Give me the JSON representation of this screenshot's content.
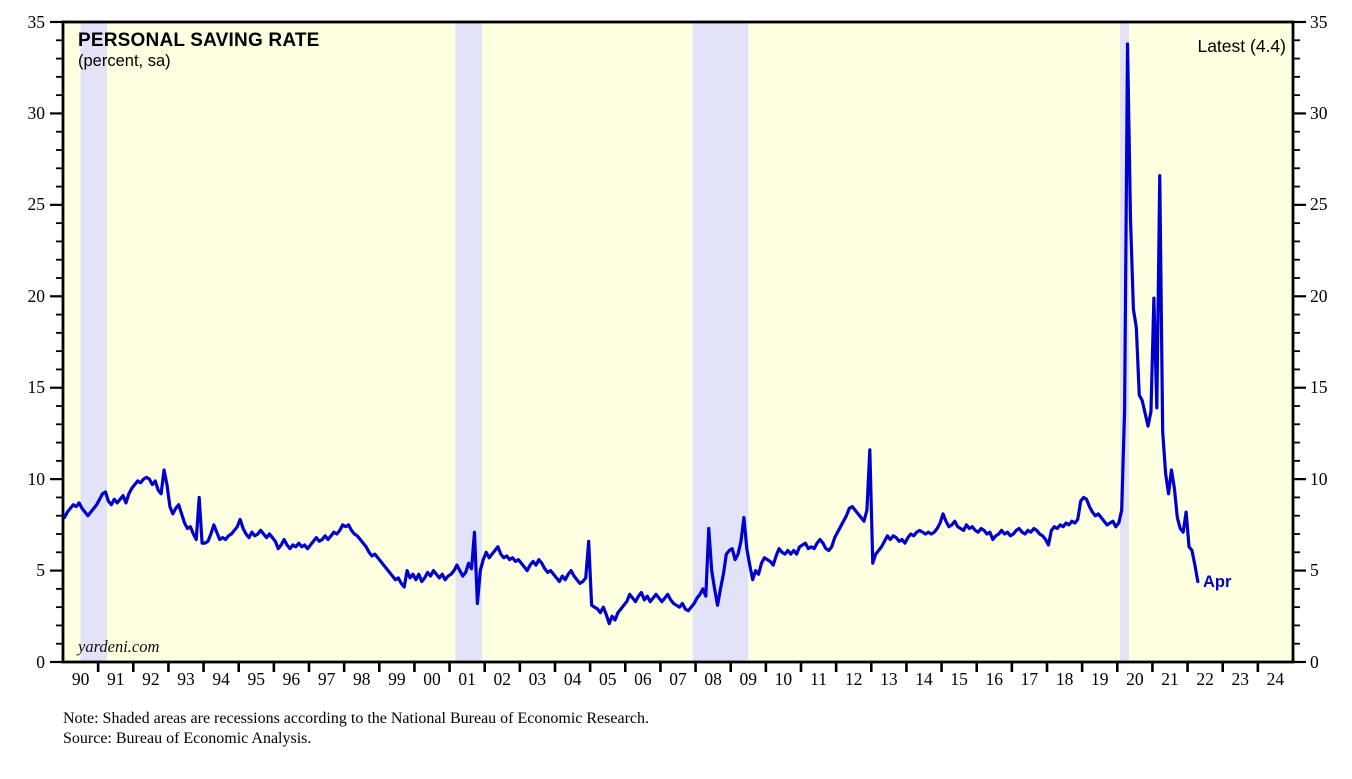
{
  "header": {
    "title": "PERSONAL SAVING RATE",
    "subtitle": "(percent, sa)"
  },
  "annotations": {
    "latest_label": "Latest (4.4)",
    "latest_value": 4.4,
    "last_point_label": "Apr",
    "watermark": "yardeni.com"
  },
  "footnotes": {
    "note": "Note: Shaded areas are recessions according to the National Bureau of Economic Research.",
    "source": "Source: Bureau of Economic Analysis."
  },
  "chart_data": {
    "type": "line",
    "title": "PERSONAL SAVING RATE",
    "units": "percent, seasonally adjusted",
    "grid": false,
    "legend_position": "none",
    "ylim": [
      0,
      35
    ],
    "y_ticks": [
      0,
      5,
      10,
      15,
      20,
      25,
      30,
      35
    ],
    "y_minor_step": 1,
    "x_range_years": [
      1990,
      2025
    ],
    "x_tick_labels": [
      "90",
      "91",
      "92",
      "93",
      "94",
      "95",
      "96",
      "97",
      "98",
      "99",
      "00",
      "01",
      "02",
      "03",
      "04",
      "05",
      "06",
      "07",
      "08",
      "09",
      "10",
      "11",
      "12",
      "13",
      "14",
      "15",
      "16",
      "17",
      "18",
      "19",
      "20",
      "21",
      "22",
      "23",
      "24"
    ],
    "recession_bands_decimal_years": [
      [
        1990.5,
        1991.25
      ],
      [
        2001.17,
        2001.92
      ],
      [
        2007.92,
        2009.5
      ],
      [
        2020.08,
        2020.33
      ]
    ],
    "colors": {
      "line": "#0000CE",
      "plot_bg": "#FFFFE1",
      "recession_band": "#E2E2F8",
      "frame": "#000000",
      "text": "#000000"
    },
    "series": [
      {
        "name": "Personal saving rate (monthly, percent of disposable income)",
        "start_month": "1990-01",
        "end_month": "2022-04",
        "values": [
          7.9,
          8.2,
          8.4,
          8.6,
          8.5,
          8.7,
          8.4,
          8.2,
          8.0,
          8.2,
          8.4,
          8.6,
          8.9,
          9.2,
          9.3,
          8.8,
          8.6,
          8.9,
          8.7,
          8.9,
          9.1,
          8.7,
          9.2,
          9.5,
          9.7,
          9.9,
          9.8,
          10.0,
          10.1,
          10.0,
          9.7,
          9.9,
          9.4,
          9.2,
          10.5,
          9.7,
          8.5,
          8.1,
          8.4,
          8.6,
          8.1,
          7.6,
          7.3,
          7.4,
          7.0,
          6.7,
          9.0,
          6.5,
          6.5,
          6.6,
          7.0,
          7.5,
          7.1,
          6.7,
          6.8,
          6.7,
          6.9,
          7.0,
          7.2,
          7.4,
          7.8,
          7.3,
          7.0,
          6.8,
          7.1,
          6.9,
          7.0,
          7.2,
          7.0,
          6.8,
          7.0,
          6.8,
          6.6,
          6.2,
          6.4,
          6.7,
          6.4,
          6.2,
          6.4,
          6.3,
          6.5,
          6.3,
          6.4,
          6.2,
          6.4,
          6.6,
          6.8,
          6.6,
          6.7,
          6.9,
          6.7,
          6.9,
          7.1,
          7.0,
          7.2,
          7.5,
          7.4,
          7.5,
          7.2,
          7.0,
          6.9,
          6.7,
          6.5,
          6.3,
          6.0,
          5.8,
          5.9,
          5.7,
          5.5,
          5.3,
          5.1,
          4.9,
          4.7,
          4.5,
          4.6,
          4.3,
          4.1,
          5.0,
          4.6,
          4.8,
          4.5,
          4.8,
          4.4,
          4.6,
          4.9,
          4.7,
          5.0,
          4.8,
          4.6,
          4.8,
          4.5,
          4.7,
          4.8,
          5.0,
          5.3,
          5.0,
          4.7,
          4.9,
          5.4,
          5.1,
          7.1,
          3.2,
          5.0,
          5.6,
          6.0,
          5.7,
          5.9,
          6.1,
          6.3,
          5.9,
          5.7,
          5.8,
          5.6,
          5.7,
          5.5,
          5.6,
          5.4,
          5.2,
          5.0,
          5.3,
          5.5,
          5.3,
          5.6,
          5.4,
          5.1,
          4.9,
          5.0,
          4.8,
          4.6,
          4.4,
          4.7,
          4.5,
          4.8,
          5.0,
          4.7,
          4.5,
          4.3,
          4.4,
          4.6,
          6.6,
          3.1,
          3.0,
          2.9,
          2.7,
          3.0,
          2.6,
          2.1,
          2.5,
          2.3,
          2.7,
          2.9,
          3.1,
          3.3,
          3.7,
          3.5,
          3.3,
          3.6,
          3.8,
          3.4,
          3.6,
          3.3,
          3.5,
          3.7,
          3.5,
          3.3,
          3.5,
          3.7,
          3.4,
          3.2,
          3.1,
          3.0,
          3.2,
          2.9,
          2.8,
          3.0,
          3.2,
          3.5,
          3.7,
          4.0,
          3.6,
          7.3,
          5.0,
          4.0,
          3.1,
          4.0,
          4.8,
          5.9,
          6.1,
          6.2,
          5.6,
          5.9,
          6.6,
          7.9,
          6.2,
          5.3,
          4.5,
          5.0,
          4.8,
          5.4,
          5.7,
          5.6,
          5.5,
          5.3,
          5.8,
          6.2,
          6.0,
          5.9,
          6.1,
          5.9,
          6.1,
          5.9,
          6.3,
          6.4,
          6.5,
          6.2,
          6.3,
          6.2,
          6.5,
          6.7,
          6.5,
          6.2,
          6.1,
          6.3,
          6.8,
          7.1,
          7.4,
          7.7,
          8.0,
          8.4,
          8.5,
          8.3,
          8.1,
          7.9,
          7.7,
          8.3,
          11.6,
          5.4,
          5.9,
          6.1,
          6.3,
          6.6,
          6.9,
          6.7,
          6.9,
          6.8,
          6.6,
          6.7,
          6.5,
          6.8,
          7.0,
          6.9,
          7.1,
          7.2,
          7.1,
          7.0,
          7.1,
          7.0,
          7.1,
          7.3,
          7.6,
          8.1,
          7.7,
          7.4,
          7.5,
          7.7,
          7.4,
          7.3,
          7.2,
          7.5,
          7.3,
          7.4,
          7.2,
          7.1,
          7.3,
          7.2,
          7.0,
          7.1,
          6.7,
          6.9,
          7.0,
          7.2,
          7.0,
          7.1,
          6.9,
          7.0,
          7.2,
          7.3,
          7.1,
          7.0,
          7.2,
          7.1,
          7.3,
          7.2,
          7.0,
          6.9,
          6.7,
          6.4,
          7.2,
          7.4,
          7.3,
          7.5,
          7.4,
          7.6,
          7.5,
          7.7,
          7.6,
          7.8,
          8.8,
          9.0,
          8.9,
          8.5,
          8.2,
          8.0,
          8.1,
          7.9,
          7.7,
          7.5,
          7.6,
          7.7,
          7.4,
          7.6,
          8.3,
          13.8,
          33.8,
          24.3,
          19.3,
          18.3,
          14.6,
          14.3,
          13.6,
          12.9,
          13.7,
          19.9,
          13.9,
          26.6,
          12.6,
          10.3,
          9.2,
          10.5,
          9.5,
          7.9,
          7.3,
          7.1,
          8.2,
          6.3,
          6.1,
          5.3,
          4.4
        ]
      }
    ]
  }
}
